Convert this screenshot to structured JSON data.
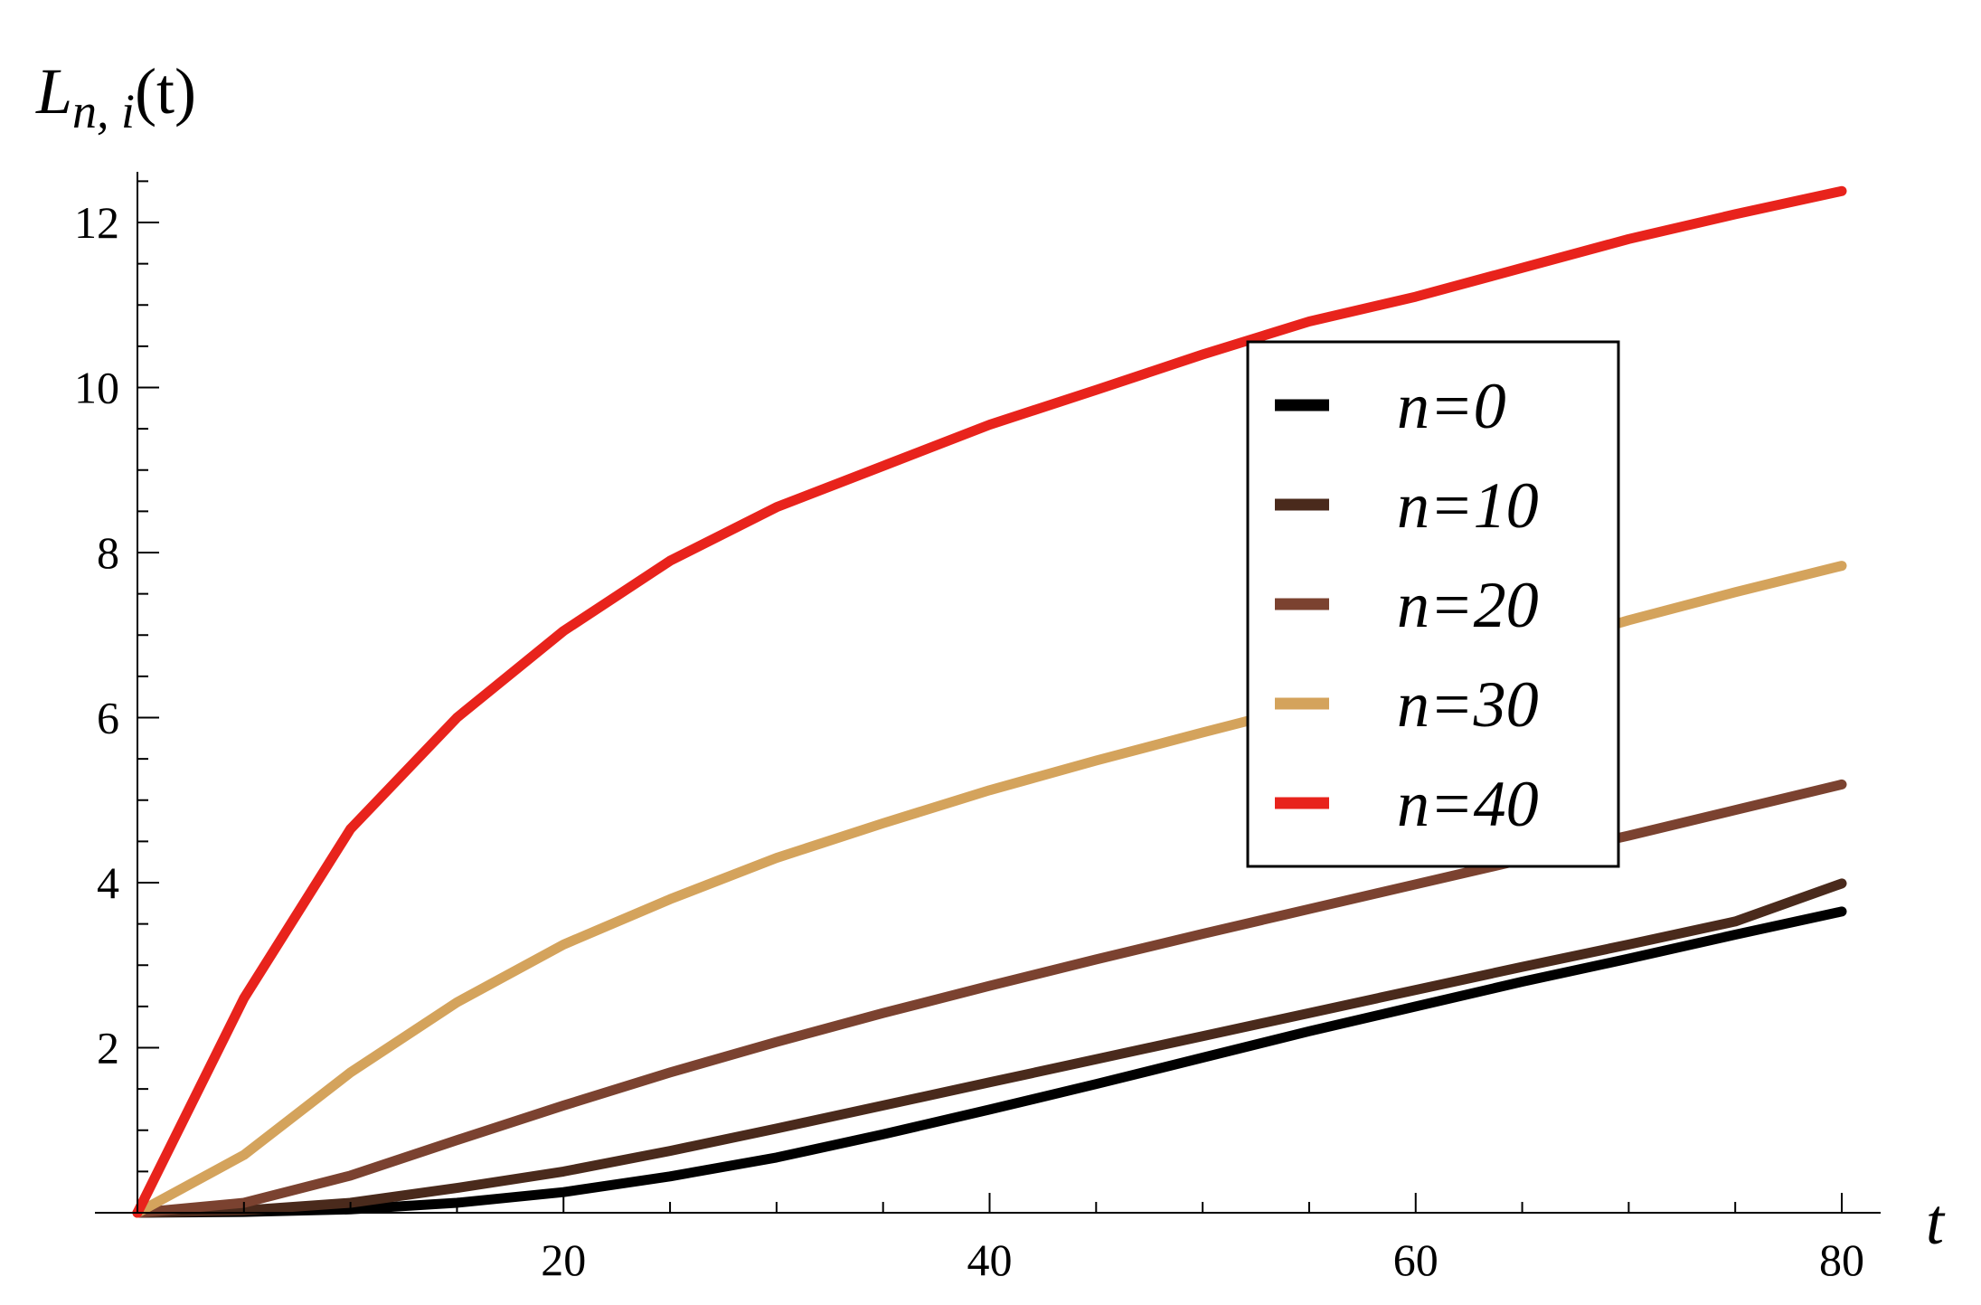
{
  "chart_data": {
    "type": "line",
    "xlabel": "t",
    "ylabel_main": "L",
    "ylabel_sub": "n, i",
    "ylabel_arg": "(t)",
    "xlim": [
      0,
      81
    ],
    "ylim": [
      0,
      12.6
    ],
    "xticks": [
      20,
      40,
      60,
      80
    ],
    "yticks": [
      2,
      4,
      6,
      8,
      10,
      12
    ],
    "x_minor_step": 5,
    "y_minor_step": 0.5,
    "grid": false,
    "legend_position": "center-right",
    "series": [
      {
        "name": "n=0",
        "color": "#000000",
        "points": [
          [
            0,
            0
          ],
          [
            5,
            0.01
          ],
          [
            10,
            0.04
          ],
          [
            15,
            0.12
          ],
          [
            20,
            0.25
          ],
          [
            25,
            0.44
          ],
          [
            30,
            0.67
          ],
          [
            35,
            0.95
          ],
          [
            40,
            1.25
          ],
          [
            45,
            1.56
          ],
          [
            50,
            1.88
          ],
          [
            55,
            2.2
          ],
          [
            60,
            2.5
          ],
          [
            65,
            2.8
          ],
          [
            70,
            3.08
          ],
          [
            75,
            3.37
          ],
          [
            80,
            3.65
          ]
        ]
      },
      {
        "name": "n=10",
        "color": "#4a2a1c",
        "points": [
          [
            0,
            0
          ],
          [
            5,
            0.03
          ],
          [
            10,
            0.12
          ],
          [
            15,
            0.3
          ],
          [
            20,
            0.5
          ],
          [
            25,
            0.75
          ],
          [
            30,
            1.02
          ],
          [
            35,
            1.3
          ],
          [
            40,
            1.58
          ],
          [
            45,
            1.86
          ],
          [
            50,
            2.14
          ],
          [
            55,
            2.42
          ],
          [
            60,
            2.7
          ],
          [
            65,
            2.98
          ],
          [
            70,
            3.25
          ],
          [
            75,
            3.53
          ],
          [
            80,
            3.99
          ]
        ]
      },
      {
        "name": "n=20",
        "color": "#7b4230",
        "points": [
          [
            0,
            0
          ],
          [
            5,
            0.12
          ],
          [
            10,
            0.45
          ],
          [
            15,
            0.88
          ],
          [
            20,
            1.3
          ],
          [
            25,
            1.7
          ],
          [
            30,
            2.07
          ],
          [
            35,
            2.42
          ],
          [
            40,
            2.75
          ],
          [
            45,
            3.07
          ],
          [
            50,
            3.38
          ],
          [
            55,
            3.68
          ],
          [
            60,
            3.98
          ],
          [
            65,
            4.28
          ],
          [
            70,
            4.57
          ],
          [
            75,
            4.88
          ],
          [
            80,
            5.19
          ]
        ]
      },
      {
        "name": "n=30",
        "color": "#d4a35c",
        "points": [
          [
            0,
            0
          ],
          [
            5,
            0.7
          ],
          [
            10,
            1.7
          ],
          [
            15,
            2.55
          ],
          [
            20,
            3.25
          ],
          [
            25,
            3.8
          ],
          [
            30,
            4.3
          ],
          [
            35,
            4.72
          ],
          [
            40,
            5.12
          ],
          [
            45,
            5.48
          ],
          [
            50,
            5.82
          ],
          [
            55,
            6.15
          ],
          [
            60,
            6.5
          ],
          [
            65,
            6.8
          ],
          [
            70,
            7.18
          ],
          [
            75,
            7.52
          ],
          [
            80,
            7.84
          ]
        ]
      },
      {
        "name": "n=40",
        "color": "#e8231c",
        "points": [
          [
            0,
            0
          ],
          [
            5,
            2.6
          ],
          [
            10,
            4.65
          ],
          [
            15,
            6.0
          ],
          [
            20,
            7.05
          ],
          [
            25,
            7.9
          ],
          [
            30,
            8.55
          ],
          [
            35,
            9.05
          ],
          [
            40,
            9.55
          ],
          [
            45,
            9.97
          ],
          [
            50,
            10.4
          ],
          [
            55,
            10.8
          ],
          [
            60,
            11.1
          ],
          [
            65,
            11.45
          ],
          [
            70,
            11.8
          ],
          [
            75,
            12.1
          ],
          [
            80,
            12.38
          ]
        ]
      }
    ]
  }
}
